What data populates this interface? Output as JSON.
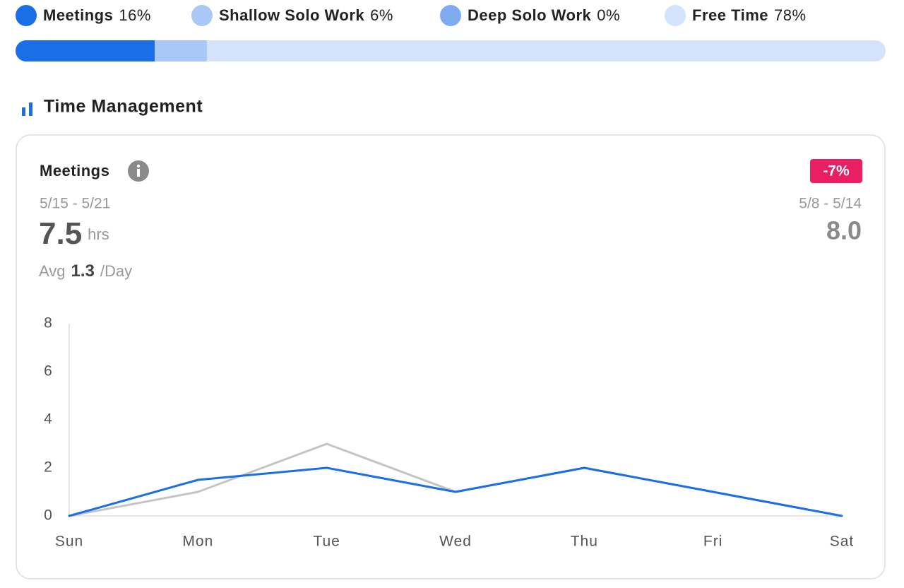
{
  "summary": {
    "items": [
      {
        "name": "Meetings",
        "value": 16,
        "value_label": "16%",
        "color": "#1a6fe6"
      },
      {
        "name": "Shallow Solo Work",
        "value": 6,
        "value_label": "6%",
        "color": "#a9c8f7"
      },
      {
        "name": "Deep Solo Work",
        "value": 0,
        "value_label": "0%",
        "color": "#7eaaf0"
      },
      {
        "name": "Free Time",
        "value": 78,
        "value_label": "78%",
        "color": "#d3e3fb"
      }
    ]
  },
  "section_title": "Time Management",
  "card": {
    "title": "Meetings",
    "change": "-7%",
    "current_range": "5/15 - 5/21",
    "current_value": "7.5",
    "unit": "hrs",
    "avg_label": "Avg",
    "avg_value": "1.3",
    "avg_unit": "/Day",
    "previous_range": "5/8 - 5/14",
    "previous_value": "8.0"
  },
  "chart_data": {
    "type": "line",
    "categories": [
      "Sun",
      "Mon",
      "Tue",
      "Wed",
      "Thu",
      "Fri",
      "Sat"
    ],
    "series": [
      {
        "color": "#c4c4c4",
        "values": [
          0,
          1,
          3,
          1,
          2,
          1,
          0
        ]
      },
      {
        "color": "#1a6fe6",
        "values": [
          0,
          1.5,
          2,
          1,
          2,
          1,
          0
        ]
      }
    ],
    "ylim": [
      0,
      8
    ],
    "yticks": [
      0,
      2,
      4,
      6,
      8
    ],
    "grid": false
  }
}
